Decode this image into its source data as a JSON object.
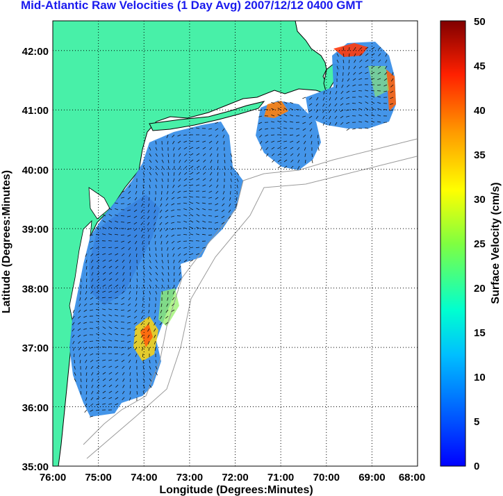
{
  "title": "Mid-Atlantic Raw Velocities (1 Day Avg) 2007/12/12 0400 GMT",
  "xlabel": "Longitude (Degrees:Minutes)",
  "ylabel": "Latitude (Degrees:Minutes)",
  "x_ticks": [
    "76:00",
    "75:00",
    "74:00",
    "73:00",
    "72:00",
    "71:00",
    "70:00",
    "69:00",
    "68:00"
  ],
  "y_ticks": [
    "42:00",
    "41:00",
    "40:00",
    "39:00",
    "38:00",
    "37:00",
    "36:00",
    "35:00"
  ],
  "colorbar": {
    "label": "Surface Velocity (cm/s)",
    "ticks": [
      "50",
      "45",
      "40",
      "35",
      "30",
      "25",
      "20",
      "15",
      "10",
      "5",
      "0"
    ],
    "range": [
      0,
      50
    ],
    "units": "cm/s"
  },
  "colors": {
    "land": "#48f0a8",
    "title": "#1a1aee",
    "grid": "#000000",
    "bathymetry": "#9a9a9a"
  },
  "map": {
    "lon_range": [
      -76,
      -68
    ],
    "lat_range": [
      35,
      42.5
    ],
    "grid": true,
    "colormap": "jet"
  }
}
